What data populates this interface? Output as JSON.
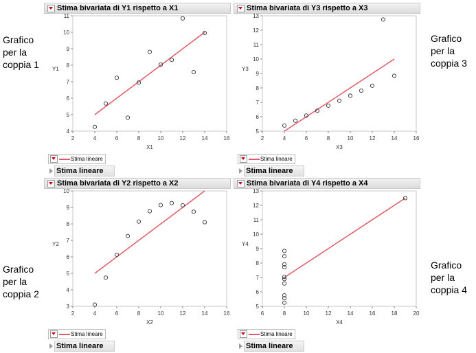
{
  "side_labels": [
    "Grafico per la coppia 1",
    "Grafico per la coppia 3",
    "Grafico per la coppia 2",
    "Grafico per la coppia 4"
  ],
  "colors": {
    "fit_line": "#e05a67",
    "points": "#333333"
  },
  "legend_label": "Stima lineare",
  "outline_label": "Stima lineare",
  "chart_data": [
    {
      "type": "scatter",
      "title": "Stima bivariata di Y1 rispetto a X1",
      "xlabel": "X1",
      "ylabel": "Y1",
      "xlim": [
        2,
        16
      ],
      "ylim": [
        4,
        11
      ],
      "xticks": [
        2,
        4,
        6,
        8,
        10,
        12,
        14,
        16
      ],
      "yticks": [
        4,
        5,
        6,
        7,
        8,
        9,
        10,
        11
      ],
      "x": [
        10,
        8,
        13,
        9,
        11,
        14,
        6,
        4,
        12,
        7,
        5
      ],
      "y": [
        8.04,
        6.95,
        7.58,
        8.81,
        8.33,
        9.96,
        7.24,
        4.26,
        10.84,
        4.82,
        5.68
      ],
      "fit": {
        "intercept": 3.0,
        "slope": 0.5,
        "x_range": [
          4,
          14
        ]
      }
    },
    {
      "type": "scatter",
      "title": "Stima bivariata di Y3 rispetto a X3",
      "xlabel": "X3",
      "ylabel": "Y3",
      "xlim": [
        2,
        16
      ],
      "ylim": [
        5,
        13
      ],
      "xticks": [
        2,
        4,
        6,
        8,
        10,
        12,
        14,
        16
      ],
      "yticks": [
        5,
        6,
        7,
        8,
        9,
        10,
        11,
        12,
        13
      ],
      "x": [
        10,
        8,
        13,
        9,
        11,
        14,
        6,
        4,
        12,
        7,
        5
      ],
      "y": [
        7.46,
        6.77,
        12.74,
        7.11,
        7.81,
        8.84,
        6.08,
        5.39,
        8.15,
        6.42,
        5.73
      ],
      "fit": {
        "intercept": 3.0,
        "slope": 0.5,
        "x_range": [
          4,
          14
        ]
      }
    },
    {
      "type": "scatter",
      "title": "Stima bivariata di Y2 rispetto a X2",
      "xlabel": "X2",
      "ylabel": "Y2",
      "xlim": [
        2,
        16
      ],
      "ylim": [
        3,
        10
      ],
      "xticks": [
        2,
        4,
        6,
        8,
        10,
        12,
        14,
        16
      ],
      "yticks": [
        3,
        4,
        5,
        6,
        7,
        8,
        9,
        10
      ],
      "x": [
        10,
        8,
        13,
        9,
        11,
        14,
        6,
        4,
        12,
        7,
        5
      ],
      "y": [
        9.14,
        8.14,
        8.74,
        8.77,
        9.26,
        8.1,
        6.13,
        3.1,
        9.13,
        7.26,
        4.74
      ],
      "fit": {
        "intercept": 3.0,
        "slope": 0.5,
        "x_range": [
          4,
          14
        ]
      }
    },
    {
      "type": "scatter",
      "title": "Stima bivariata di Y4 rispetto a X4",
      "xlabel": "X4",
      "ylabel": "Y4",
      "xlim": [
        6,
        20
      ],
      "ylim": [
        5,
        13
      ],
      "xticks": [
        6,
        8,
        10,
        12,
        14,
        16,
        18,
        20
      ],
      "yticks": [
        5,
        6,
        7,
        8,
        9,
        10,
        11,
        12,
        13
      ],
      "x": [
        8,
        8,
        8,
        8,
        8,
        8,
        8,
        19,
        8,
        8,
        8
      ],
      "y": [
        6.58,
        5.76,
        7.71,
        8.84,
        8.47,
        7.04,
        5.25,
        12.5,
        5.56,
        7.91,
        6.89
      ],
      "fit": {
        "intercept": 3.0,
        "slope": 0.5,
        "x_range": [
          8,
          19
        ]
      }
    }
  ]
}
